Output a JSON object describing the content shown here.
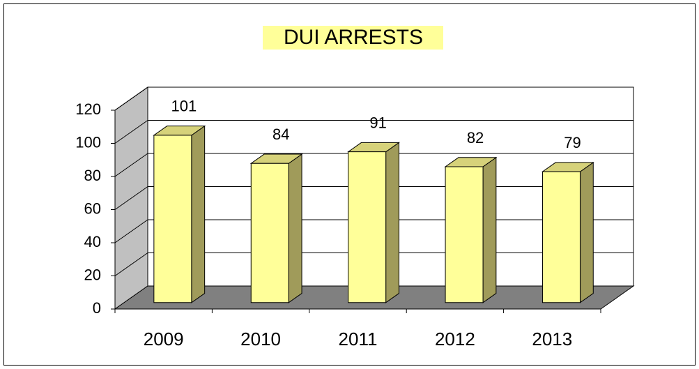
{
  "chart_data": {
    "type": "bar",
    "title": "DUI ARRESTS",
    "categories": [
      "2009",
      "2010",
      "2011",
      "2012",
      "2013"
    ],
    "values": [
      101,
      84,
      91,
      82,
      79
    ],
    "color": "#ffff99",
    "ylim": [
      0,
      120
    ],
    "yticks": [
      0,
      20,
      40,
      60,
      80,
      100,
      120
    ],
    "grid": true
  }
}
